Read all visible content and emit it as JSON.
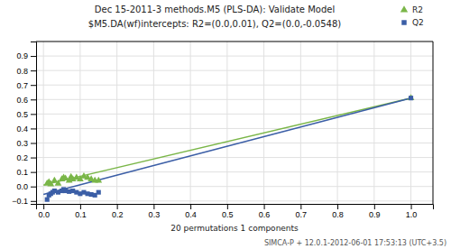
{
  "chart_data": {
    "type": "scatter",
    "title": "Dec 15-2011-3 methods.M5 (PLS-DA): Validate Model",
    "subtitle": "$M5.DA(wf)intercepts: R2=(0.0,0.01), Q2=(0.0,-0.0548)",
    "x_label": "20 permutations 1 components",
    "annotations": [
      "SIMCA-P + 12.0.1-2012-06-01 17:53:13 (UTC+3.5)"
    ],
    "xlim": [
      -0.02,
      1.06
    ],
    "ylim": [
      -0.12,
      1.0
    ],
    "xticks": [
      {
        "value": 0.0,
        "label": "0.0"
      },
      0.1,
      0.2,
      0.3,
      0.4,
      0.5,
      0.6,
      0.7,
      0.8,
      0.9,
      {
        "value": 1.0,
        "label": "1.0"
      }
    ],
    "yticks": [
      {
        "value": -0.1,
        "label": "−0.1"
      },
      {
        "value": 0.0,
        "label": "0.0"
      },
      0.1,
      0.2,
      0.3,
      0.4,
      0.5,
      0.6,
      0.7,
      0.8,
      0.9
    ],
    "grid": true,
    "legend": "top-right",
    "series": [
      {
        "type": "line",
        "color": "#7ab648",
        "line_style": "solid",
        "x": [
          0.0,
          1.0
        ],
        "values": [
          0.01,
          0.61
        ]
      },
      {
        "type": "line",
        "color": "#3b5ea6",
        "line_style": "solid",
        "x": [
          0.0,
          1.0
        ],
        "values": [
          -0.0548,
          0.61
        ]
      },
      {
        "name": "R2",
        "type": "scatter",
        "color": "#7ab648",
        "marker": "triangle",
        "x": [
          0.01,
          0.015,
          0.02,
          0.03,
          0.04,
          0.05,
          0.055,
          0.06,
          0.07,
          0.075,
          0.08,
          0.09,
          0.1,
          0.11,
          0.12,
          0.13,
          0.14,
          0.15,
          1.0
        ],
        "values": [
          0.02,
          0.03,
          0.015,
          0.04,
          0.02,
          0.05,
          0.06,
          0.055,
          0.04,
          0.065,
          0.05,
          0.06,
          0.05,
          0.07,
          0.06,
          0.05,
          0.04,
          0.04,
          0.61
        ]
      },
      {
        "name": "Q2",
        "type": "scatter",
        "color": "#3b5ea6",
        "marker": "square",
        "x": [
          0.01,
          0.015,
          0.02,
          0.025,
          0.03,
          0.04,
          0.05,
          0.055,
          0.06,
          0.07,
          0.08,
          0.09,
          0.1,
          0.11,
          0.12,
          0.13,
          0.14,
          0.15,
          1.0
        ],
        "values": [
          -0.09,
          -0.06,
          -0.05,
          -0.04,
          -0.03,
          -0.04,
          -0.03,
          -0.02,
          -0.03,
          -0.035,
          -0.03,
          -0.04,
          -0.05,
          -0.04,
          -0.05,
          -0.055,
          -0.06,
          -0.04,
          0.61
        ]
      }
    ]
  }
}
